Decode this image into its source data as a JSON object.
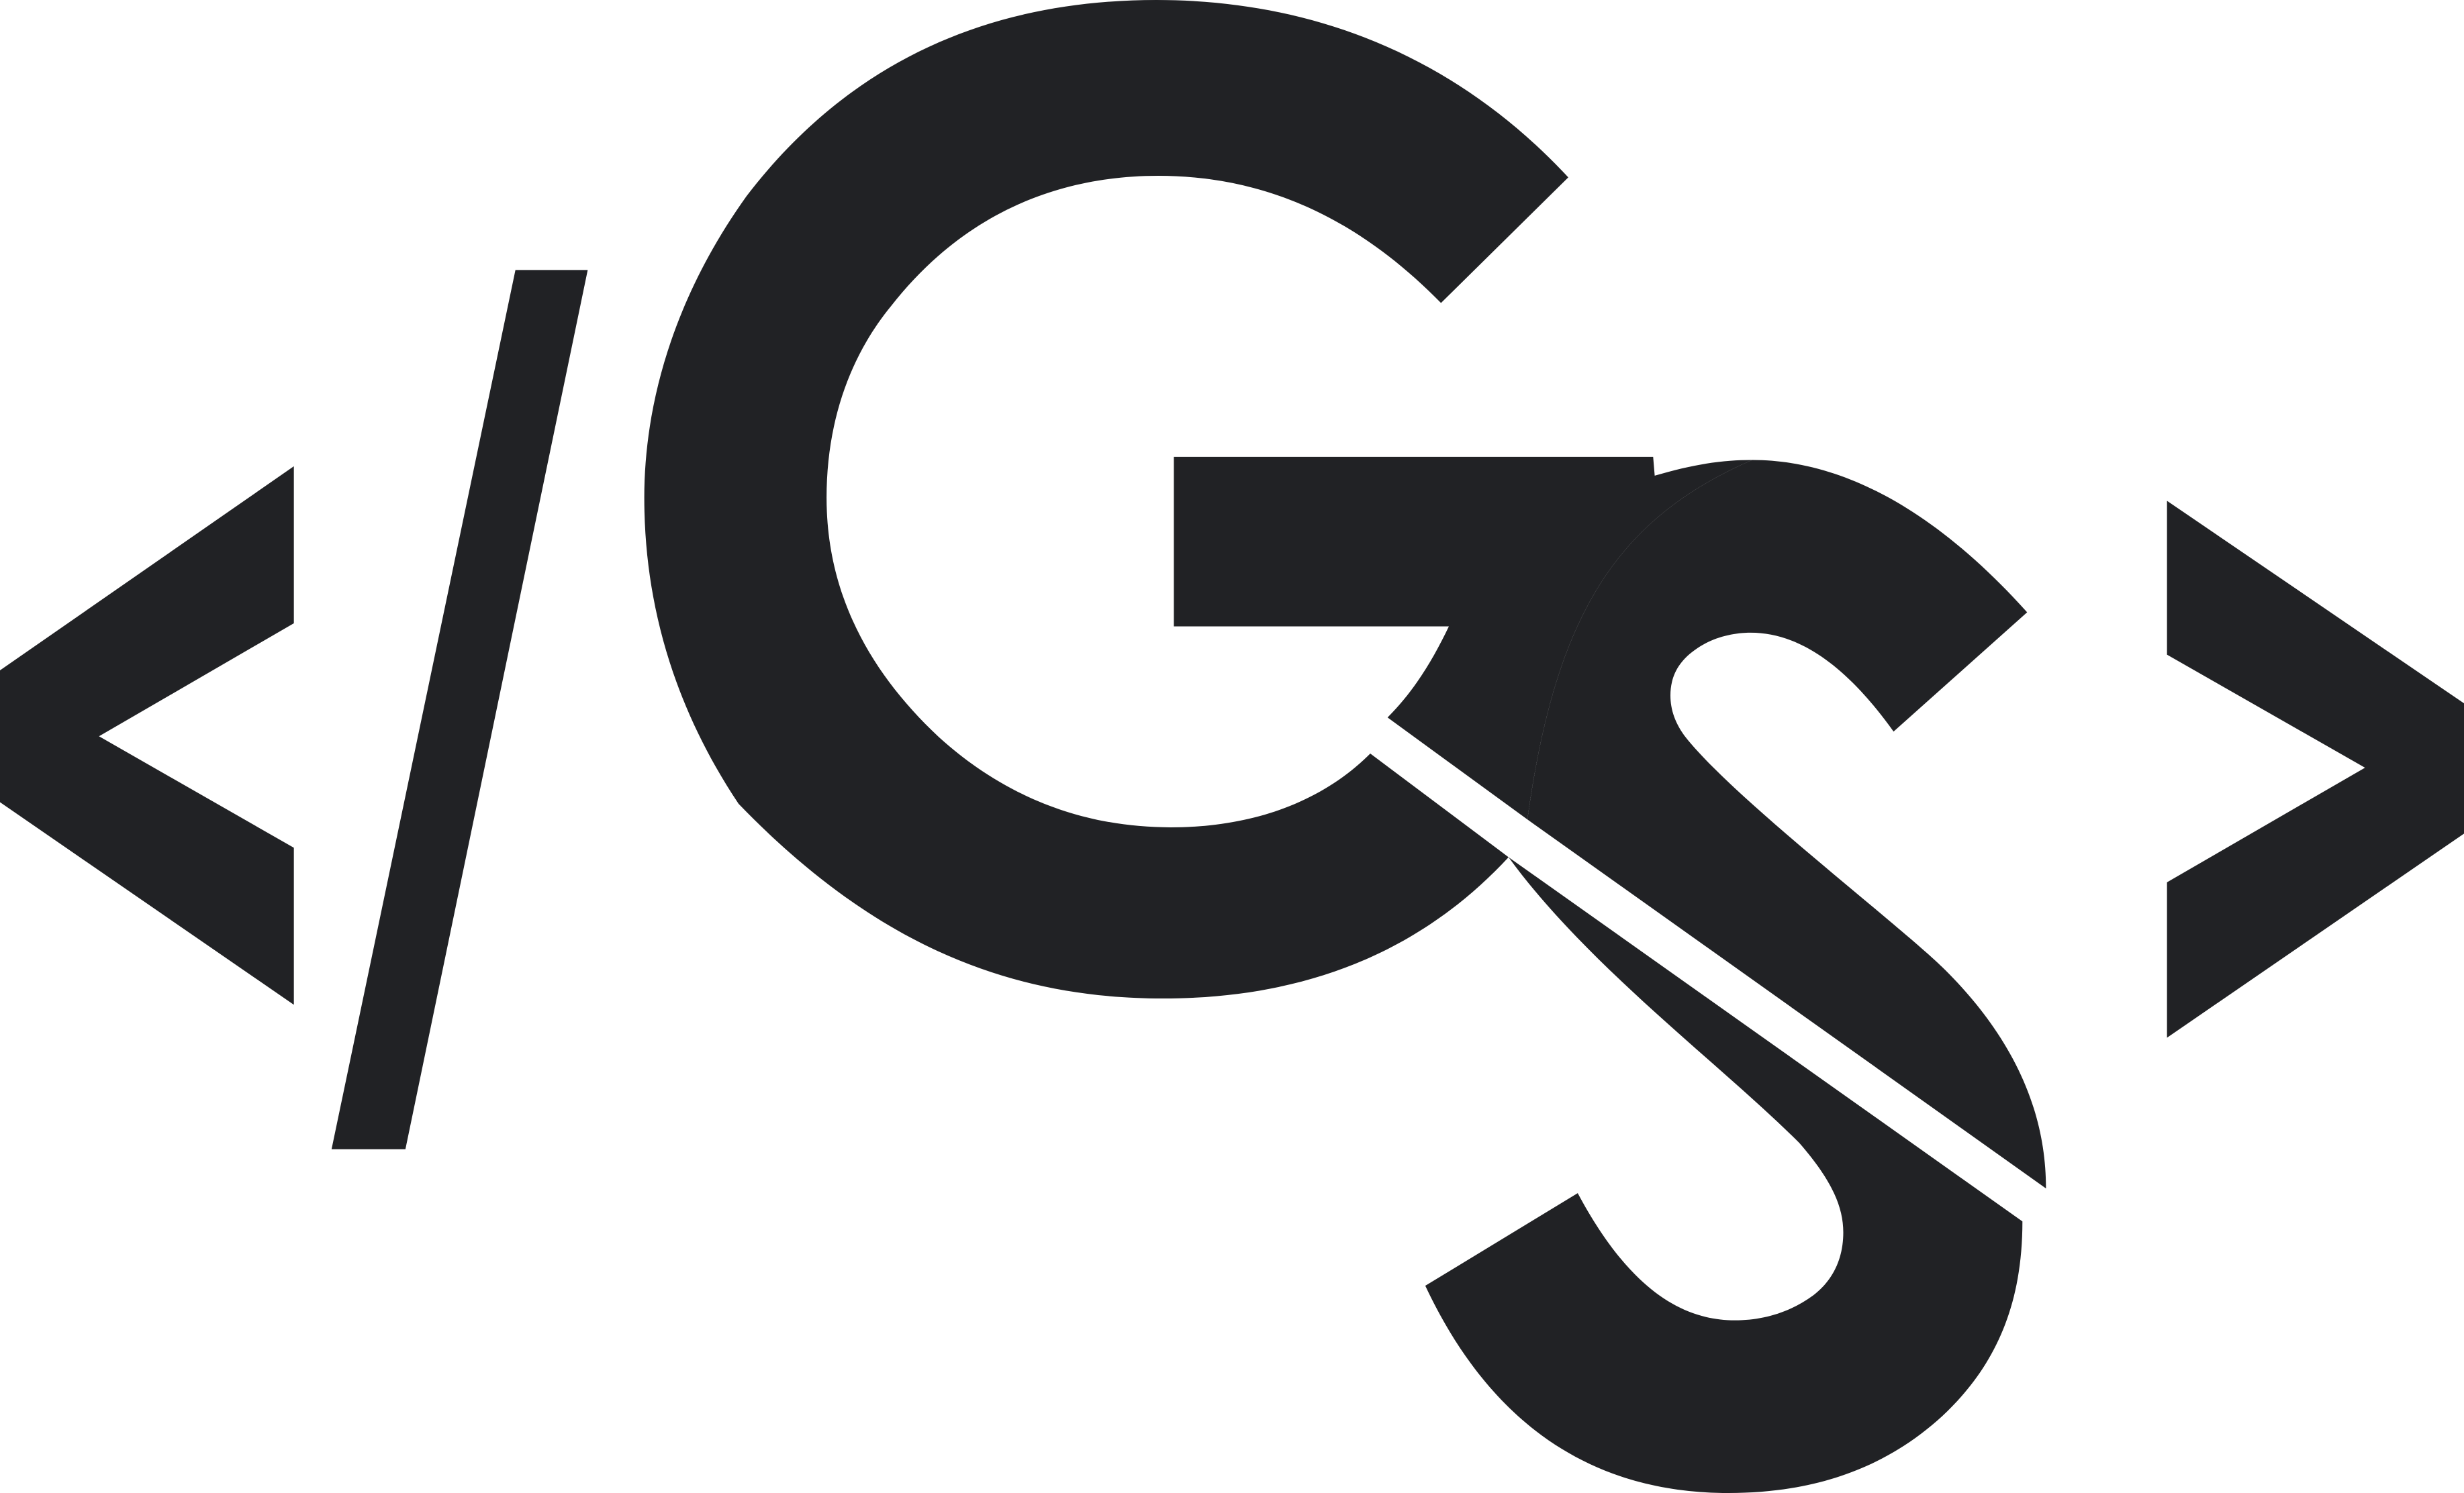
{
  "logo": {
    "colors": {
      "ink": "#212225",
      "background": "#ffffff",
      "split_gap": "#ffffff"
    },
    "parts": {
      "left_bracket": "less-than-glyph",
      "slash": "forward-slash-glyph",
      "letter_g": "letter-g-glyph",
      "letter_s": "letter-s-glyph",
      "right_bracket": "greater-than-glyph"
    }
  }
}
